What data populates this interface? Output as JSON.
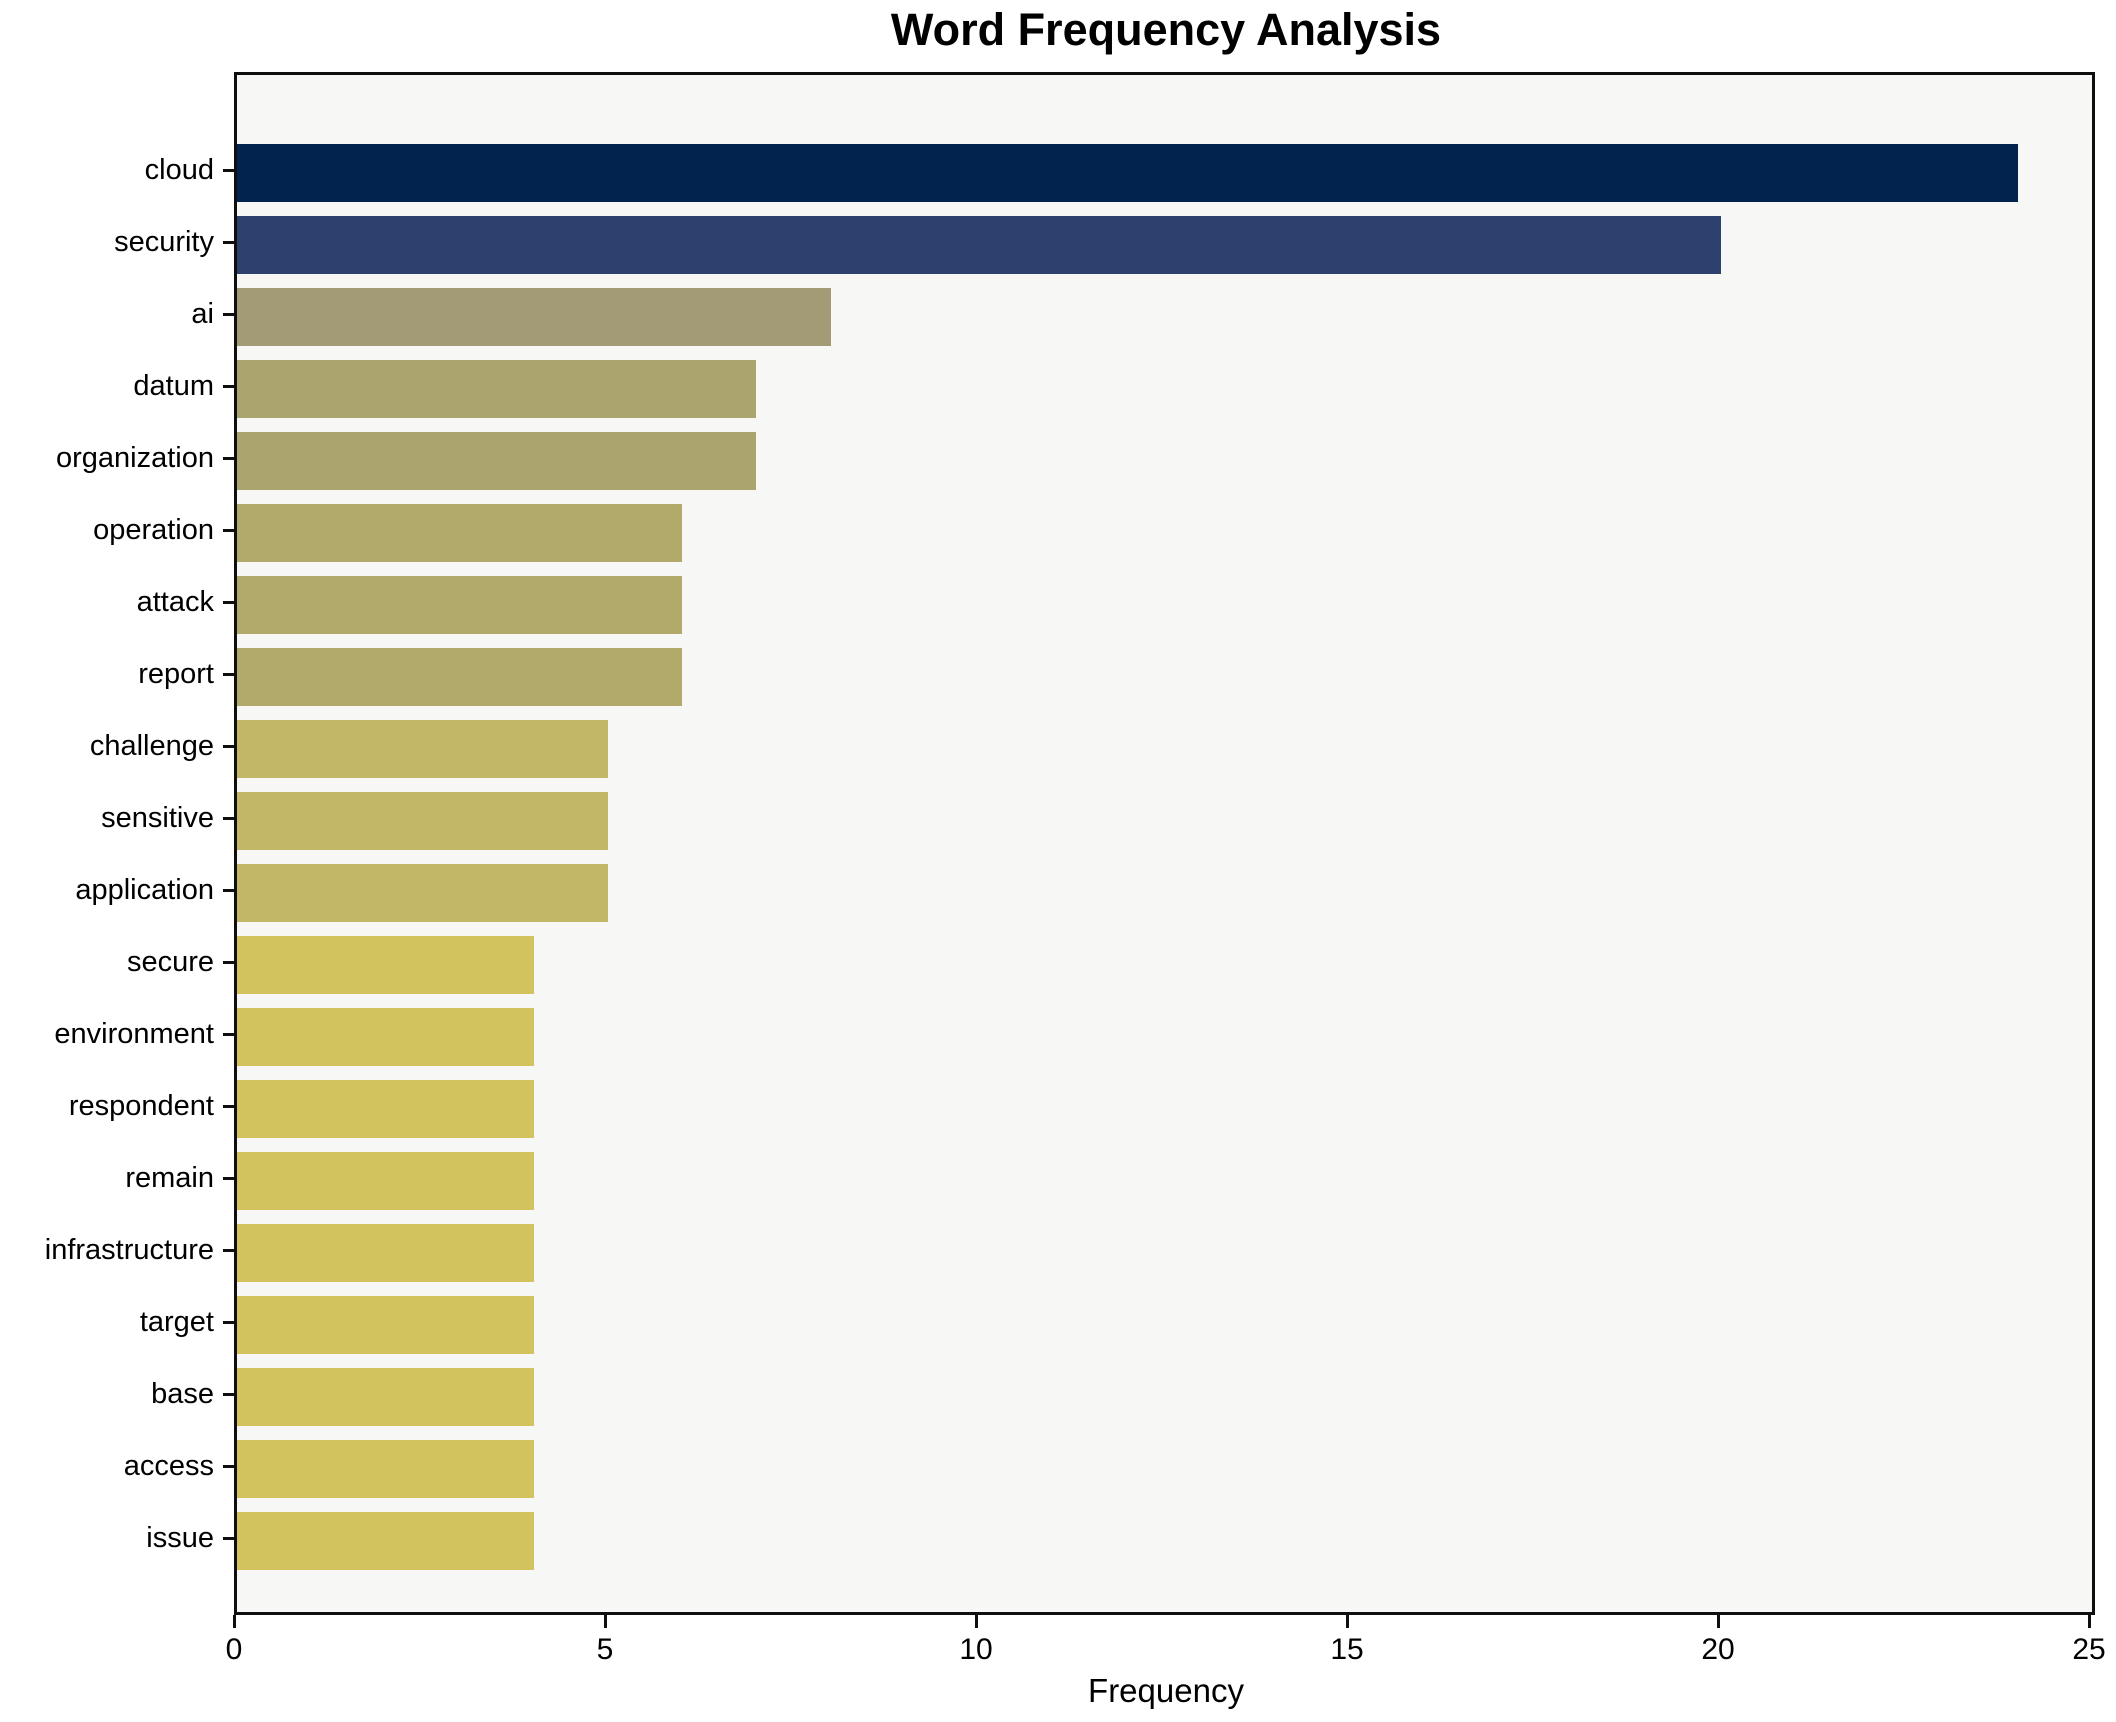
{
  "title": "Word Frequency Analysis",
  "chart_data": {
    "type": "bar",
    "orientation": "horizontal",
    "title": "Word Frequency Analysis",
    "xlabel": "Frequency",
    "ylabel": "",
    "xlim": [
      0,
      25
    ],
    "x_ticks": [
      0,
      5,
      10,
      15,
      20,
      25
    ],
    "grid": false,
    "legend": "none",
    "plot_background": "#f7f7f5",
    "figure_background": "#ffffff",
    "spine_color": "#0f0f0f",
    "categories": [
      "cloud",
      "security",
      "ai",
      "datum",
      "organization",
      "operation",
      "attack",
      "report",
      "challenge",
      "sensitive",
      "application",
      "secure",
      "environment",
      "respondent",
      "remain",
      "infrastructure",
      "target",
      "base",
      "access",
      "issue"
    ],
    "values": [
      24,
      20,
      8,
      7,
      7,
      6,
      6,
      6,
      5,
      5,
      5,
      4,
      4,
      4,
      4,
      4,
      4,
      4,
      4,
      4
    ],
    "bar_colors": [
      "#01234d",
      "#2e406e",
      "#a29b75",
      "#aca46f",
      "#aca46f",
      "#b2aa6a",
      "#b2aa6a",
      "#b2aa6a",
      "#c2b766",
      "#c2b766",
      "#c2b766",
      "#d2c35f",
      "#d2c35f",
      "#d2c35f",
      "#d2c35f",
      "#d2c35f",
      "#d2c35f",
      "#d2c35f",
      "#d2c35f",
      "#d2c35f"
    ]
  }
}
